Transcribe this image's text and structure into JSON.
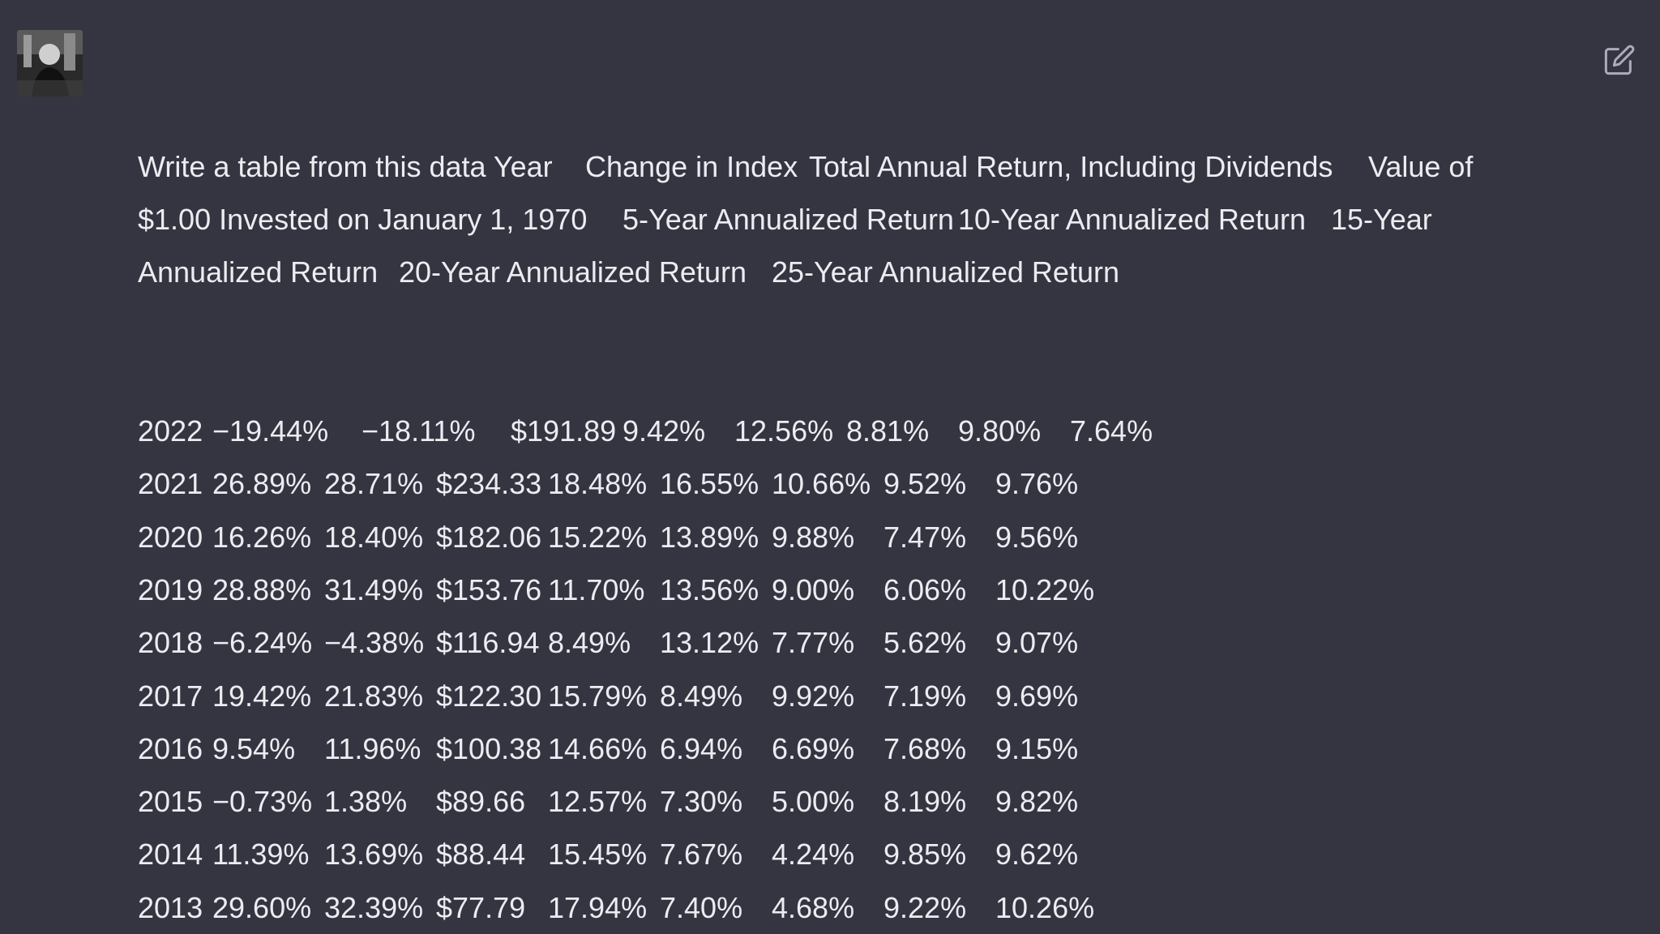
{
  "message": {
    "prompt": "Write a table from this data",
    "columns": [
      "Year",
      "Change in Index",
      "Total Annual Return, Including Dividends",
      "Value of $1.00 Invested on January 1, 1970",
      "5-Year Annualized Return",
      "10-Year Annualized Return",
      "15-Year Annualized Return",
      "20-Year Annualized Return",
      "25-Year Annualized Return"
    ],
    "rows": [
      [
        "2022",
        "−19.44%",
        "−18.11%",
        "$191.89",
        "9.42%",
        "12.56%",
        "8.81%",
        "9.80%",
        "7.64%"
      ],
      [
        "2021",
        "26.89%",
        "28.71%",
        "$234.33",
        "18.48%",
        "16.55%",
        "10.66%",
        "9.52%",
        "9.76%"
      ],
      [
        "2020",
        "16.26%",
        "18.40%",
        "$182.06",
        "15.22%",
        "13.89%",
        "9.88%",
        "7.47%",
        "9.56%"
      ],
      [
        "2019",
        "28.88%",
        "31.49%",
        "$153.76",
        "11.70%",
        "13.56%",
        "9.00%",
        "6.06%",
        "10.22%"
      ],
      [
        "2018",
        "−6.24%",
        "−4.38%",
        "$116.94",
        "8.49%",
        "13.12%",
        "7.77%",
        "5.62%",
        "9.07%"
      ],
      [
        "2017",
        "19.42%",
        "21.83%",
        "$122.30",
        "15.79%",
        "8.49%",
        "9.92%",
        "7.19%",
        "9.69%"
      ],
      [
        "2016",
        "9.54%",
        "11.96%",
        "$100.38",
        "14.66%",
        "6.94%",
        "6.69%",
        "7.68%",
        "9.15%"
      ],
      [
        "2015",
        "−0.73%",
        "1.38%",
        "$89.66",
        "12.57%",
        "7.30%",
        "5.00%",
        "8.19%",
        "9.82%"
      ],
      [
        "2014",
        "11.39%",
        "13.69%",
        "$88.44",
        "15.45%",
        "7.67%",
        "4.24%",
        "9.85%",
        "9.62%"
      ],
      [
        "2013",
        "29.60%",
        "32.39%",
        "$77.79",
        "17.94%",
        "7.40%",
        "4.68%",
        "9.22%",
        "10.26%"
      ]
    ]
  }
}
